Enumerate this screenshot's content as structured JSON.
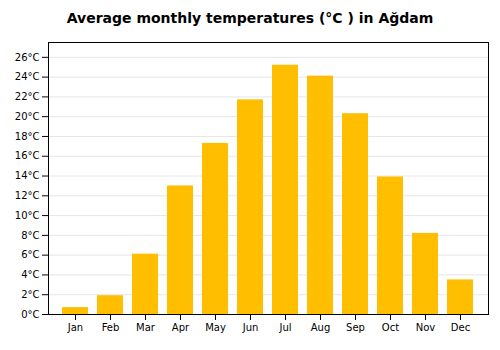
{
  "chart_data": {
    "type": "bar",
    "title": "Average monthly temperatures (°C ) in Ağdam",
    "categories": [
      "Jan",
      "Feb",
      "Mar",
      "Apr",
      "May",
      "Jun",
      "Jul",
      "Aug",
      "Sep",
      "Oct",
      "Nov",
      "Dec"
    ],
    "values": [
      0.7,
      1.9,
      6.1,
      13.0,
      17.3,
      21.7,
      25.2,
      24.1,
      20.3,
      13.9,
      8.2,
      3.5
    ],
    "color": "#FFBF00",
    "ylim": [
      0,
      27.5
    ],
    "yticks": [
      {
        "value": 0,
        "label": "0°C"
      },
      {
        "value": 2,
        "label": "2°C"
      },
      {
        "value": 4,
        "label": "4°C"
      },
      {
        "value": 6,
        "label": "6°C"
      },
      {
        "value": 8,
        "label": "8°C"
      },
      {
        "value": 10,
        "label": "10°C"
      },
      {
        "value": 12,
        "label": "12°C"
      },
      {
        "value": 14,
        "label": "14°C"
      },
      {
        "value": 16,
        "label": "16°C"
      },
      {
        "value": 18,
        "label": "18°C"
      },
      {
        "value": 20,
        "label": "20°C"
      },
      {
        "value": 22,
        "label": "22°C"
      },
      {
        "value": 24,
        "label": "24°C"
      },
      {
        "value": 26,
        "label": "26°C"
      }
    ],
    "grid": true
  }
}
